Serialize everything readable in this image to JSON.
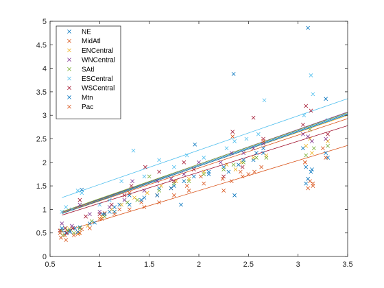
{
  "chart_data": {
    "type": "scatter",
    "title": "",
    "xlabel": "",
    "ylabel": "",
    "xlim": [
      0.5,
      3.5
    ],
    "ylim": [
      0,
      5
    ],
    "xticks": [
      0.5,
      1,
      1.5,
      2,
      2.5,
      3,
      3.5
    ],
    "yticks": [
      0,
      0.5,
      1,
      1.5,
      2,
      2.5,
      3,
      3.5,
      4,
      4.5,
      5
    ],
    "xtick_labels": [
      "0.5",
      "1",
      "1.5",
      "2",
      "2.5",
      "3",
      "3.5"
    ],
    "ytick_labels": [
      "0",
      "0.5",
      "1",
      "1.5",
      "2",
      "2.5",
      "3",
      "3.5",
      "4",
      "4.5",
      "5"
    ],
    "grid": false,
    "legend_position": "top-left",
    "marker": "x",
    "series": [
      {
        "name": "NE",
        "color": "#0072BD",
        "points": [
          [
            0.62,
            0.55
          ],
          [
            0.66,
            0.5
          ],
          [
            0.7,
            0.52
          ],
          [
            0.75,
            0.6
          ],
          [
            0.8,
            0.62
          ],
          [
            0.95,
            0.72
          ],
          [
            1.03,
            0.9
          ],
          [
            1.1,
            0.95
          ],
          [
            1.15,
            1.05
          ],
          [
            1.2,
            1.1
          ],
          [
            1.3,
            1.3
          ],
          [
            1.45,
            1.25
          ],
          [
            1.6,
            1.45
          ],
          [
            1.75,
            1.5
          ],
          [
            1.85,
            1.6
          ],
          [
            1.95,
            1.7
          ],
          [
            2.1,
            1.8
          ],
          [
            2.25,
            1.9
          ],
          [
            2.35,
            3.88
          ],
          [
            2.4,
            1.95
          ],
          [
            2.55,
            2.05
          ],
          [
            2.65,
            2.2
          ],
          [
            3.05,
            2.3
          ],
          [
            3.08,
            1.9
          ],
          [
            3.1,
            4.86
          ],
          [
            3.13,
            1.8
          ],
          [
            3.28,
            3.35
          ],
          [
            3.3,
            2.1
          ]
        ],
        "fit": [
          0.73,
          0.48
        ]
      },
      {
        "name": "MidAtl",
        "color": "#D95319",
        "points": [
          [
            0.6,
            0.5
          ],
          [
            0.65,
            0.45
          ],
          [
            0.7,
            0.55
          ],
          [
            0.78,
            0.48
          ],
          [
            0.82,
            0.58
          ],
          [
            1.0,
            0.8
          ],
          [
            1.05,
            0.92
          ],
          [
            1.2,
            1.0
          ],
          [
            1.3,
            1.35
          ],
          [
            1.42,
            1.15
          ],
          [
            1.58,
            1.3
          ],
          [
            1.72,
            1.45
          ],
          [
            1.88,
            1.5
          ],
          [
            2.02,
            1.7
          ],
          [
            2.25,
            1.4
          ],
          [
            2.33,
            1.6
          ],
          [
            2.42,
            1.8
          ],
          [
            2.5,
            1.75
          ],
          [
            2.63,
            1.9
          ],
          [
            3.07,
            2.0
          ],
          [
            3.12,
            1.6
          ],
          [
            3.15,
            1.5
          ],
          [
            3.25,
            2.3
          ]
        ],
        "fit": [
          0.7,
          0.48
        ]
      },
      {
        "name": "ENCentral",
        "color": "#EDB120",
        "points": [
          [
            0.61,
            0.55
          ],
          [
            0.66,
            0.6
          ],
          [
            0.7,
            0.58
          ],
          [
            0.79,
            0.5
          ],
          [
            0.88,
            0.65
          ],
          [
            1.02,
            0.85
          ],
          [
            1.12,
            1.0
          ],
          [
            1.22,
            1.1
          ],
          [
            1.35,
            1.25
          ],
          [
            1.48,
            1.35
          ],
          [
            1.62,
            1.5
          ],
          [
            1.77,
            1.6
          ],
          [
            1.9,
            1.65
          ],
          [
            2.05,
            1.8
          ],
          [
            2.28,
            1.95
          ],
          [
            2.37,
            1.85
          ],
          [
            2.43,
            2.0
          ],
          [
            2.55,
            2.1
          ],
          [
            2.68,
            2.15
          ],
          [
            3.08,
            2.35
          ],
          [
            3.12,
            2.5
          ],
          [
            3.14,
            2.2
          ],
          [
            3.3,
            2.45
          ]
        ],
        "fit": [
          0.72,
          0.48
        ]
      },
      {
        "name": "WNCentral",
        "color": "#7E2F8E",
        "points": [
          [
            0.62,
            0.7
          ],
          [
            0.65,
            0.6
          ],
          [
            0.72,
            0.65
          ],
          [
            0.8,
            1.1
          ],
          [
            0.9,
            0.9
          ],
          [
            1.0,
            0.95
          ],
          [
            1.1,
            1.05
          ],
          [
            1.25,
            1.2
          ],
          [
            1.33,
            1.6
          ],
          [
            1.45,
            1.4
          ],
          [
            1.58,
            1.6
          ],
          [
            1.72,
            1.65
          ],
          [
            1.85,
            1.75
          ],
          [
            2.0,
            2.0
          ],
          [
            2.22,
            2.0
          ],
          [
            2.33,
            2.2
          ],
          [
            2.45,
            2.2
          ],
          [
            2.55,
            2.3
          ],
          [
            2.65,
            2.4
          ],
          [
            3.05,
            2.6
          ],
          [
            3.1,
            2.55
          ],
          [
            3.14,
            2.45
          ],
          [
            3.28,
            2.5
          ]
        ],
        "fit": [
          0.74,
          0.48
        ]
      },
      {
        "name": "SAtl",
        "color": "#77AC30",
        "points": [
          [
            0.63,
            0.45
          ],
          [
            0.68,
            0.55
          ],
          [
            0.74,
            0.5
          ],
          [
            0.8,
            0.6
          ],
          [
            0.92,
            0.75
          ],
          [
            1.05,
            0.85
          ],
          [
            1.15,
            0.95
          ],
          [
            1.28,
            1.15
          ],
          [
            1.38,
            1.2
          ],
          [
            1.5,
            1.7
          ],
          [
            1.6,
            1.4
          ],
          [
            1.75,
            1.55
          ],
          [
            1.9,
            1.6
          ],
          [
            2.05,
            1.75
          ],
          [
            2.25,
            1.85
          ],
          [
            2.35,
            1.95
          ],
          [
            2.45,
            2.0
          ],
          [
            2.58,
            2.1
          ],
          [
            2.68,
            2.1
          ],
          [
            3.08,
            2.15
          ],
          [
            3.12,
            2.7
          ],
          [
            3.16,
            2.3
          ],
          [
            3.3,
            2.35
          ]
        ],
        "fit": [
          0.73,
          0.5
        ]
      },
      {
        "name": "ESCentral",
        "color": "#4DBEEE",
        "points": [
          [
            0.62,
            0.95
          ],
          [
            0.66,
            1.05
          ],
          [
            0.72,
            1.0
          ],
          [
            0.78,
            1.4
          ],
          [
            0.82,
            1.35
          ],
          [
            1.0,
            1.1
          ],
          [
            1.1,
            1.2
          ],
          [
            1.22,
            1.6
          ],
          [
            1.34,
            2.25
          ],
          [
            1.45,
            1.7
          ],
          [
            1.6,
            2.05
          ],
          [
            1.75,
            1.9
          ],
          [
            1.88,
            2.15
          ],
          [
            2.05,
            2.1
          ],
          [
            2.28,
            2.3
          ],
          [
            2.36,
            2.45
          ],
          [
            2.48,
            2.5
          ],
          [
            2.6,
            2.6
          ],
          [
            2.66,
            3.32
          ],
          [
            3.06,
            3.0
          ],
          [
            3.13,
            3.85
          ],
          [
            3.15,
            3.45
          ],
          [
            3.3,
            2.9
          ]
        ],
        "fit": [
          0.73,
          0.8
        ]
      },
      {
        "name": "WSCentral",
        "color": "#A2142F",
        "points": [
          [
            0.6,
            0.55
          ],
          [
            0.67,
            0.5
          ],
          [
            0.73,
            0.6
          ],
          [
            0.8,
            1.2
          ],
          [
            0.86,
            0.85
          ],
          [
            1.0,
            0.9
          ],
          [
            1.12,
            1.1
          ],
          [
            1.25,
            1.3
          ],
          [
            1.32,
            1.5
          ],
          [
            1.46,
            1.9
          ],
          [
            1.6,
            1.8
          ],
          [
            1.75,
            1.6
          ],
          [
            1.85,
            2.0
          ],
          [
            1.95,
            1.85
          ],
          [
            2.25,
            1.7
          ],
          [
            2.34,
            2.65
          ],
          [
            2.44,
            1.9
          ],
          [
            2.55,
            2.95
          ],
          [
            2.65,
            2.5
          ],
          [
            3.05,
            2.8
          ],
          [
            3.08,
            3.2
          ],
          [
            3.13,
            3.1
          ],
          [
            3.3,
            2.6
          ]
        ],
        "fit": [
          0.66,
          0.47
        ]
      },
      {
        "name": "Mtn",
        "color": "#0072BD",
        "points": [
          [
            0.62,
            0.6
          ],
          [
            0.7,
            0.55
          ],
          [
            0.78,
            0.52
          ],
          [
            0.82,
            1.42
          ],
          [
            0.9,
            0.7
          ],
          [
            1.05,
            0.9
          ],
          [
            1.15,
            0.95
          ],
          [
            1.3,
            1.1
          ],
          [
            1.42,
            1.2
          ],
          [
            1.58,
            1.3
          ],
          [
            1.72,
            1.45
          ],
          [
            1.82,
            1.1
          ],
          [
            1.96,
            2.38
          ],
          [
            2.1,
            1.75
          ],
          [
            2.3,
            1.8
          ],
          [
            2.36,
            1.3
          ],
          [
            2.45,
            2.05
          ],
          [
            2.58,
            2.2
          ],
          [
            2.65,
            2.3
          ],
          [
            3.08,
            1.55
          ],
          [
            3.1,
            1.65
          ],
          [
            3.14,
            1.85
          ],
          [
            3.28,
            2.2
          ]
        ],
        "fit": [
          0.73,
          0.46
        ]
      },
      {
        "name": "Pac",
        "color": "#D95319",
        "points": [
          [
            0.61,
            0.4
          ],
          [
            0.66,
            0.35
          ],
          [
            0.74,
            0.45
          ],
          [
            0.8,
            0.5
          ],
          [
            0.9,
            0.6
          ],
          [
            1.02,
            0.8
          ],
          [
            1.15,
            0.9
          ],
          [
            1.3,
            1.0
          ],
          [
            1.45,
            1.05
          ],
          [
            1.6,
            1.15
          ],
          [
            1.75,
            1.3
          ],
          [
            1.9,
            1.4
          ],
          [
            2.05,
            1.55
          ],
          [
            2.24,
            1.65
          ],
          [
            2.34,
            2.55
          ],
          [
            2.44,
            1.7
          ],
          [
            2.56,
            1.8
          ],
          [
            2.65,
            2.45
          ],
          [
            3.07,
            2.0
          ],
          [
            3.1,
            1.45
          ],
          [
            3.15,
            1.55
          ],
          [
            3.28,
            2.1
          ]
        ],
        "fit": [
          0.64,
          0.12
        ]
      }
    ]
  }
}
